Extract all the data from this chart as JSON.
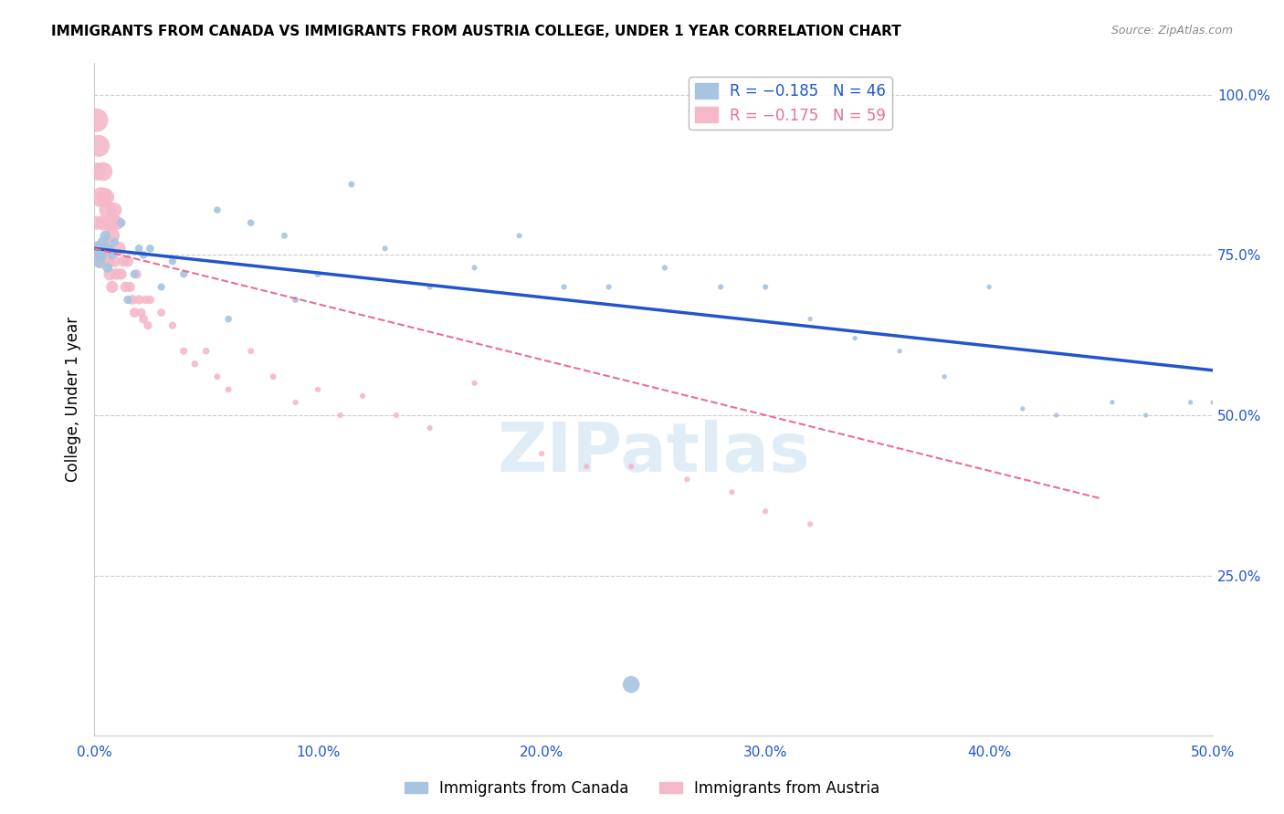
{
  "title": "IMMIGRANTS FROM CANADA VS IMMIGRANTS FROM AUSTRIA COLLEGE, UNDER 1 YEAR CORRELATION CHART",
  "source": "Source: ZipAtlas.com",
  "ylabel": "College, Under 1 year",
  "x_tick_labels": [
    "0.0%",
    "10.0%",
    "20.0%",
    "30.0%",
    "40.0%",
    "50.0%"
  ],
  "x_ticks": [
    0.0,
    0.1,
    0.2,
    0.3,
    0.4,
    0.5
  ],
  "y_tick_labels": [
    "100.0%",
    "75.0%",
    "50.0%",
    "25.0%"
  ],
  "y_ticks": [
    1.0,
    0.75,
    0.5,
    0.25
  ],
  "xlim": [
    0.0,
    0.5
  ],
  "ylim": [
    0.0,
    1.05
  ],
  "legend_canada": "R = −0.185   N = 46",
  "legend_austria": "R = −0.175   N = 59",
  "canada_color": "#a8c4e0",
  "austria_color": "#f4b8c8",
  "canada_line_color": "#2255cc",
  "austria_line_color": "#e87090",
  "watermark": "ZIPatlas",
  "canada_line_x0": 0.0,
  "canada_line_y0": 0.76,
  "canada_line_x1": 0.5,
  "canada_line_y1": 0.57,
  "austria_line_x0": 0.0,
  "austria_line_y0": 0.76,
  "austria_line_x1": 0.45,
  "austria_line_y1": 0.37,
  "canada_points_x": [
    0.001,
    0.002,
    0.003,
    0.004,
    0.005,
    0.006,
    0.007,
    0.008,
    0.012,
    0.015,
    0.018,
    0.022,
    0.025,
    0.03,
    0.04,
    0.055,
    0.07,
    0.085,
    0.1,
    0.115,
    0.13,
    0.15,
    0.17,
    0.19,
    0.21,
    0.23,
    0.255,
    0.28,
    0.3,
    0.32,
    0.34,
    0.36,
    0.38,
    0.4,
    0.415,
    0.43,
    0.455,
    0.47,
    0.49,
    0.5,
    0.009,
    0.02,
    0.035,
    0.06,
    0.09,
    0.24
  ],
  "canada_points_y": [
    0.76,
    0.74,
    0.75,
    0.77,
    0.78,
    0.73,
    0.76,
    0.75,
    0.8,
    0.68,
    0.72,
    0.75,
    0.76,
    0.7,
    0.72,
    0.82,
    0.8,
    0.78,
    0.72,
    0.86,
    0.76,
    0.7,
    0.73,
    0.78,
    0.7,
    0.7,
    0.73,
    0.7,
    0.7,
    0.65,
    0.62,
    0.6,
    0.56,
    0.7,
    0.51,
    0.5,
    0.52,
    0.5,
    0.52,
    0.52,
    0.77,
    0.76,
    0.74,
    0.65,
    0.68,
    0.08
  ],
  "canada_sizes": [
    120,
    100,
    90,
    80,
    70,
    60,
    55,
    50,
    50,
    45,
    45,
    40,
    40,
    35,
    35,
    30,
    30,
    25,
    25,
    25,
    20,
    20,
    20,
    20,
    20,
    20,
    20,
    20,
    20,
    15,
    15,
    15,
    15,
    15,
    15,
    15,
    15,
    15,
    15,
    15,
    45,
    40,
    35,
    30,
    25,
    180
  ],
  "austria_points_x": [
    0.001,
    0.001,
    0.001,
    0.002,
    0.002,
    0.003,
    0.003,
    0.004,
    0.004,
    0.005,
    0.005,
    0.006,
    0.006,
    0.007,
    0.007,
    0.008,
    0.008,
    0.009,
    0.009,
    0.01,
    0.01,
    0.011,
    0.012,
    0.013,
    0.014,
    0.015,
    0.016,
    0.017,
    0.018,
    0.019,
    0.02,
    0.021,
    0.022,
    0.023,
    0.024,
    0.025,
    0.03,
    0.035,
    0.04,
    0.045,
    0.05,
    0.055,
    0.06,
    0.07,
    0.08,
    0.09,
    0.1,
    0.11,
    0.12,
    0.135,
    0.15,
    0.17,
    0.2,
    0.22,
    0.24,
    0.265,
    0.285,
    0.3,
    0.32
  ],
  "austria_points_y": [
    0.96,
    0.88,
    0.8,
    0.92,
    0.76,
    0.84,
    0.74,
    0.88,
    0.8,
    0.84,
    0.76,
    0.82,
    0.74,
    0.8,
    0.72,
    0.78,
    0.7,
    0.82,
    0.74,
    0.8,
    0.72,
    0.76,
    0.72,
    0.74,
    0.7,
    0.74,
    0.7,
    0.68,
    0.66,
    0.72,
    0.68,
    0.66,
    0.65,
    0.68,
    0.64,
    0.68,
    0.66,
    0.64,
    0.6,
    0.58,
    0.6,
    0.56,
    0.54,
    0.6,
    0.56,
    0.52,
    0.54,
    0.5,
    0.53,
    0.5,
    0.48,
    0.55,
    0.44,
    0.42,
    0.42,
    0.4,
    0.38,
    0.35,
    0.33
  ],
  "austria_sizes": [
    350,
    200,
    120,
    300,
    150,
    250,
    130,
    220,
    140,
    200,
    120,
    180,
    110,
    160,
    100,
    150,
    90,
    140,
    90,
    130,
    85,
    120,
    80,
    75,
    70,
    80,
    65,
    60,
    60,
    55,
    55,
    50,
    50,
    45,
    45,
    45,
    40,
    35,
    35,
    30,
    30,
    25,
    25,
    25,
    25,
    20,
    20,
    20,
    20,
    20,
    20,
    20,
    20,
    20,
    20,
    20,
    20,
    20,
    20
  ]
}
